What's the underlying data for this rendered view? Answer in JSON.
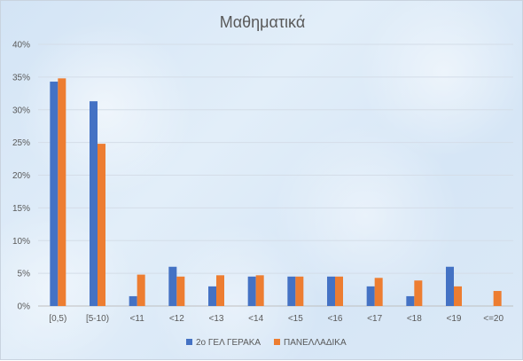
{
  "chart_data": {
    "type": "bar",
    "title": "Μαθηματικά",
    "xlabel": "",
    "ylabel": "",
    "categories": [
      "[0,5)",
      "[5-10)",
      "<11",
      "<12",
      "<13",
      "<14",
      "<15",
      "<16",
      "<17",
      "<18",
      "<19",
      "<=20"
    ],
    "series": [
      {
        "name": "2ο ΓΕΛ ΓΕΡΑΚΑ",
        "color": "#4472c4",
        "values": [
          0.343,
          0.313,
          0.015,
          0.06,
          0.03,
          0.045,
          0.045,
          0.045,
          0.03,
          0.015,
          0.06,
          0.0
        ]
      },
      {
        "name": "ΠΑΝΕΛΛΑΔΙΚΑ",
        "color": "#ed7d31",
        "values": [
          0.348,
          0.248,
          0.048,
          0.045,
          0.047,
          0.047,
          0.045,
          0.045,
          0.043,
          0.039,
          0.03,
          0.023
        ]
      }
    ],
    "ylim": [
      0,
      0.4
    ],
    "yticks": [
      "0%",
      "5%",
      "10%",
      "15%",
      "20%",
      "25%",
      "30%",
      "35%",
      "40%"
    ],
    "grid": true,
    "legend_position": "bottom"
  }
}
